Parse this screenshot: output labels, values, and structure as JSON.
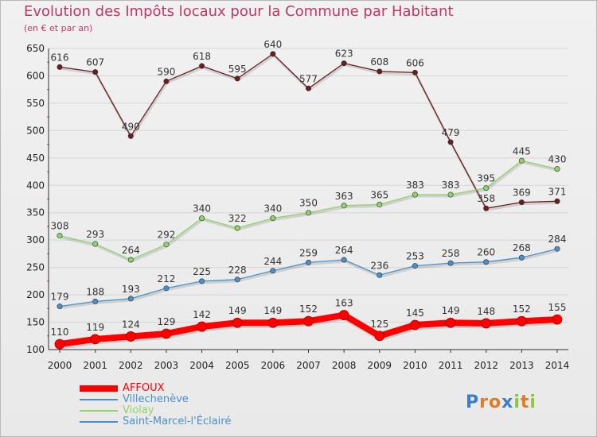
{
  "title": "Evolution des Impôts locaux pour la Commune par Habitant",
  "subtitle": "(en € et par an)",
  "chart_data": {
    "type": "line",
    "title": "Evolution des Impôts locaux pour la Commune par Habitant",
    "subtitle": "(en € et par an)",
    "x": [
      2000,
      2001,
      2002,
      2003,
      2004,
      2005,
      2006,
      2007,
      2008,
      2009,
      2010,
      2011,
      2012,
      2013,
      2014
    ],
    "x_tick_labels": [
      "2000",
      "2001",
      "2002",
      "2003",
      "2004",
      "2005",
      "2006",
      "2007",
      "2008",
      "2009",
      "2010",
      "2011",
      "2012",
      "2013",
      "2014"
    ],
    "ylim": [
      100,
      650
    ],
    "y_ticks": [
      100,
      150,
      200,
      250,
      300,
      350,
      400,
      450,
      500,
      550,
      600,
      650
    ],
    "y_tick_labels": [
      "100",
      "150",
      "200",
      "250",
      "300",
      "350",
      "400",
      "450",
      "500",
      "550",
      "600",
      "650"
    ],
    "grid": "horizontal",
    "legend_position": "bottom-left",
    "series": [
      {
        "name": "AFFOUX",
        "color": "#ff0000",
        "values": [
          110,
          119,
          124,
          129,
          142,
          149,
          149,
          152,
          163,
          125,
          145,
          149,
          148,
          152,
          155
        ]
      },
      {
        "name": "Villechenève",
        "color": "#4a90c8",
        "values": [
          179,
          188,
          193,
          212,
          225,
          228,
          244,
          259,
          264,
          236,
          253,
          258,
          260,
          268,
          284
        ]
      },
      {
        "name": "Violay",
        "color": "#8ed468",
        "values": [
          308,
          293,
          264,
          292,
          340,
          322,
          340,
          350,
          363,
          365,
          383,
          383,
          395,
          445,
          430
        ]
      },
      {
        "name": "Saint-Marcel-l'Éclairé",
        "color": "#6b1e1e",
        "values": [
          616,
          607,
          490,
          590,
          618,
          595,
          640,
          577,
          623,
          608,
          606,
          479,
          358,
          369,
          371
        ]
      }
    ]
  },
  "legend": [
    {
      "label": "AFFOUX",
      "color": "#ff0000"
    },
    {
      "label": "Villechenève",
      "color": "#4a90c8"
    },
    {
      "label": "Violay",
      "color": "#8ed468"
    },
    {
      "label": "Saint-Marcel-l'Éclairé",
      "color": "#6b1e1e"
    }
  ],
  "logo": {
    "text": "Proxiti",
    "letters": [
      "P",
      "r",
      "o",
      "x",
      "i",
      "t",
      "i"
    ],
    "colors": [
      "#3b7dc4",
      "#e07b2a",
      "#e07b2a",
      "#3b7dc4",
      "#8ac63f",
      "#e07b2a",
      "#8ac63f"
    ]
  }
}
